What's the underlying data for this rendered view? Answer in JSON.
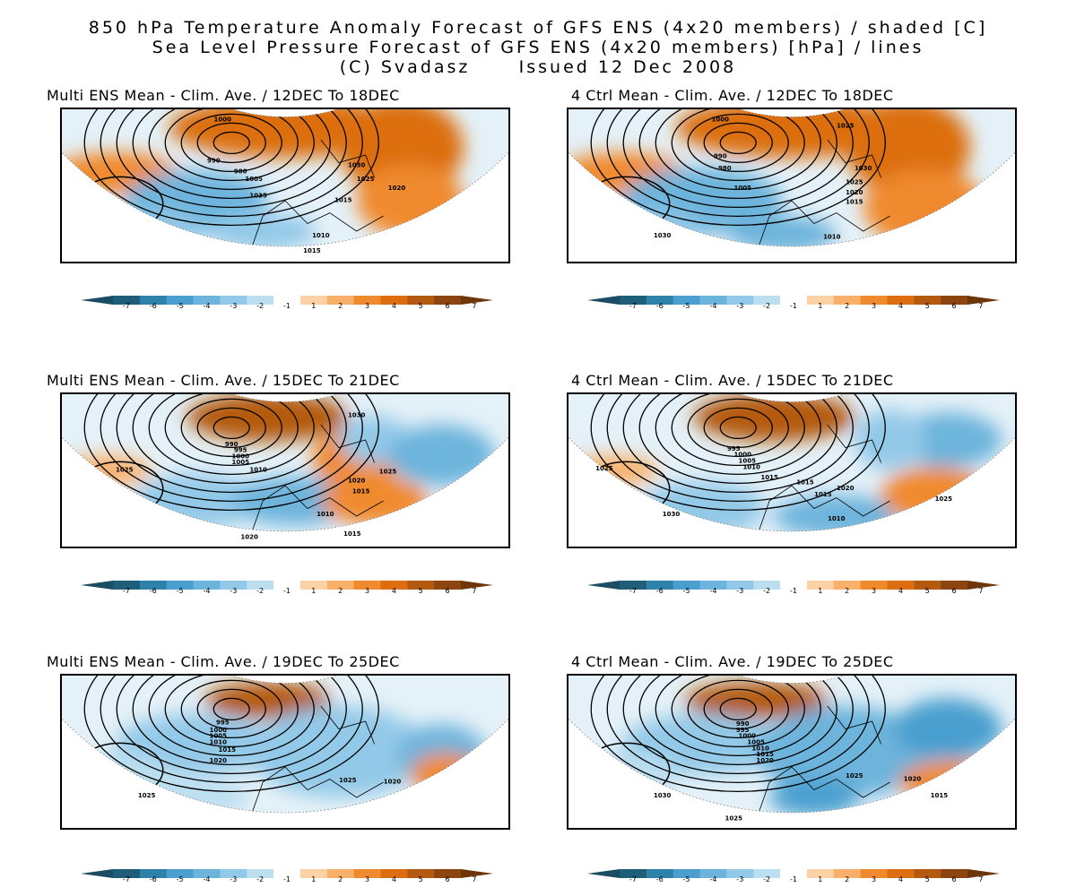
{
  "header": {
    "line1": "850 hPa Temperature Anomaly Forecast of GFS ENS (4x20 members) / shaded [C]",
    "line2": "Sea Level Pressure Forecast of GFS ENS (4x20 members) [hPa] / lines",
    "line3": "(C) Svadasz      Issued 12 Dec 2008"
  },
  "colorbar": {
    "ticks": [
      "-7",
      "-6",
      "-5",
      "-4",
      "-3",
      "-2",
      "-1",
      "1",
      "2",
      "3",
      "4",
      "5",
      "6",
      "7"
    ],
    "colors": [
      "#1f5e78",
      "#2e81a8",
      "#4a9fcf",
      "#6db4dc",
      "#93c9e8",
      "#bcdff0",
      "#ffffff",
      "#fcd1a5",
      "#f8b06b",
      "#f08a2e",
      "#dc6e10",
      "#b45a10",
      "#8c4410"
    ]
  },
  "panels": [
    {
      "title": "Multi ENS Mean - Clim. Ave. / 12DEC To 18DEC",
      "labels": [
        "1000",
        "990",
        "980",
        "1005",
        "1035",
        "1030",
        "1025",
        "1020",
        "1015",
        "1010",
        "1015"
      ]
    },
    {
      "title": "4 Ctrl Mean - Clim. Ave. / 12DEC To 18DEC",
      "labels": [
        "1000",
        "1025",
        "990",
        "980",
        "1005",
        "1030",
        "1025",
        "1020",
        "1015",
        "1030",
        "1010"
      ]
    },
    {
      "title": "Multi ENS Mean - Clim. Ave. / 15DEC To 21DEC",
      "labels": [
        "1030",
        "990",
        "995",
        "1000",
        "1005",
        "1010",
        "1025",
        "1025",
        "1020",
        "1015",
        "1010",
        "1015",
        "1020"
      ]
    },
    {
      "title": "4 Ctrl Mean - Clim. Ave. / 15DEC To 21DEC",
      "labels": [
        "1025",
        "995",
        "1000",
        "1005",
        "1010",
        "1015",
        "1015",
        "1020",
        "1015",
        "1025",
        "1030",
        "1010"
      ]
    },
    {
      "title": "Multi ENS Mean - Clim. Ave. / 19DEC To 25DEC",
      "labels": [
        "995",
        "1000",
        "1005",
        "1010",
        "1015",
        "1020",
        "1025",
        "1020",
        "1025"
      ]
    },
    {
      "title": "4 Ctrl Mean - Clim. Ave. / 19DEC To 25DEC",
      "labels": [
        "990",
        "995",
        "1000",
        "1005",
        "1010",
        "1015",
        "1020",
        "1025",
        "1020",
        "1015",
        "1030",
        "1025"
      ]
    }
  ]
}
